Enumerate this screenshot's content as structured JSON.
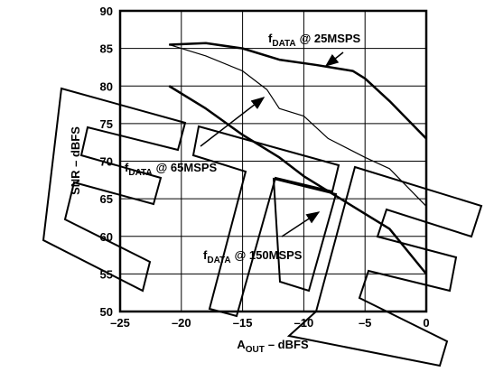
{
  "chart_data": {
    "type": "line",
    "x_label": {
      "main": "A",
      "sub": "OUT",
      "tail": "– dBFS"
    },
    "y_label": "SNR – dBFS",
    "xlim": [
      -25,
      0
    ],
    "ylim": [
      50,
      90
    ],
    "xticks": [
      {
        "value": -25,
        "label": "–25"
      },
      {
        "value": -20,
        "label": "–20"
      },
      {
        "value": -15,
        "label": "–15"
      },
      {
        "value": -10,
        "label": "–10"
      },
      {
        "value": -5,
        "label": "–5"
      },
      0
    ],
    "yticks": [
      50,
      55,
      60,
      65,
      70,
      75,
      80,
      85,
      90
    ],
    "grid": true,
    "series": [
      {
        "label": {
          "main": "f",
          "sub": "DATA",
          "tail": "@ 25MSPS"
        },
        "color": "#000000",
        "line_width": 2.5,
        "x": [
          -21,
          -18,
          -15,
          -12,
          -9,
          -6,
          -5,
          -3,
          0
        ],
        "values": [
          85.5,
          85.7,
          85,
          83.5,
          82.8,
          82,
          81,
          78,
          73
        ]
      },
      {
        "label": {
          "main": "f",
          "sub": "DATA",
          "tail": "@ 65MSPS"
        },
        "color": "#000000",
        "line_width": 1.2,
        "x": [
          -21,
          -18,
          -15,
          -13,
          -12,
          -10,
          -8,
          -5,
          -3,
          0
        ],
        "values": [
          85.5,
          84,
          82,
          79.5,
          77,
          76,
          73,
          70.5,
          69,
          64
        ]
      },
      {
        "label": {
          "main": "f",
          "sub": "DATA",
          "tail": "@ 150MSPS"
        },
        "color": "#000000",
        "line_width": 2.5,
        "x": [
          -21,
          -18,
          -15,
          -12,
          -10,
          -8,
          -5,
          -3,
          0
        ],
        "values": [
          80,
          77,
          73.5,
          70.5,
          68,
          66,
          63,
          61,
          55
        ]
      }
    ]
  }
}
